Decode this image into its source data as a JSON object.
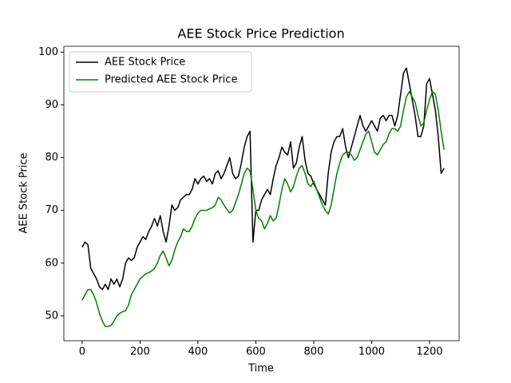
{
  "chart_data": {
    "type": "line",
    "title": "AEE Stock Price Prediction",
    "x_label": "Time",
    "y_label": "AEE Stock Price",
    "x": [
      0,
      10,
      20,
      30,
      40,
      50,
      60,
      70,
      80,
      90,
      100,
      110,
      120,
      130,
      140,
      150,
      160,
      170,
      180,
      190,
      200,
      210,
      220,
      230,
      240,
      250,
      260,
      270,
      280,
      290,
      300,
      310,
      320,
      330,
      340,
      350,
      360,
      370,
      380,
      390,
      400,
      410,
      420,
      430,
      440,
      450,
      460,
      470,
      480,
      490,
      500,
      510,
      520,
      530,
      540,
      550,
      560,
      570,
      580,
      590,
      600,
      610,
      620,
      630,
      640,
      650,
      660,
      670,
      680,
      690,
      700,
      710,
      720,
      730,
      740,
      750,
      760,
      770,
      780,
      790,
      800,
      810,
      820,
      830,
      840,
      850,
      860,
      870,
      880,
      890,
      900,
      910,
      920,
      930,
      940,
      950,
      960,
      970,
      980,
      990,
      1000,
      1010,
      1020,
      1030,
      1040,
      1050,
      1060,
      1070,
      1080,
      1090,
      1100,
      1110,
      1120,
      1130,
      1140,
      1150,
      1160,
      1170,
      1180,
      1190,
      1200,
      1210,
      1220,
      1230,
      1240,
      1250
    ],
    "series": [
      {
        "name": "AEE Stock Price",
        "color": "#000000",
        "values": [
          63,
          64,
          63.5,
          59,
          58,
          57,
          55.5,
          55,
          56,
          55,
          57,
          56,
          57,
          55.5,
          57,
          60,
          61,
          60.5,
          61,
          63,
          64,
          65,
          64.5,
          66,
          67,
          68.5,
          67,
          69,
          66,
          64,
          67,
          71,
          70,
          70.5,
          72,
          72.5,
          73,
          73,
          74,
          76,
          75,
          76,
          76.5,
          75.5,
          76,
          75,
          77,
          77.5,
          76,
          77,
          78.5,
          80,
          77,
          76,
          76.5,
          79,
          82,
          84,
          85,
          64,
          70,
          70,
          72,
          73,
          74,
          73,
          76,
          78.5,
          80,
          82,
          81,
          80.5,
          83,
          78,
          79,
          82,
          84,
          79.5,
          77,
          76.5,
          75,
          74,
          73,
          72,
          71,
          77,
          81,
          83,
          84,
          84,
          85.5,
          82,
          80,
          82,
          84,
          86,
          88,
          86,
          85,
          86,
          87,
          86,
          85,
          87.5,
          88,
          87,
          88,
          88,
          86,
          88,
          92,
          96,
          97,
          94,
          91,
          88,
          84,
          84,
          86,
          94,
          95,
          92,
          89,
          84,
          77,
          78
        ]
      },
      {
        "name": "Predicted AEE Stock Price",
        "color": "#008000",
        "values": [
          53,
          54,
          55,
          55,
          54,
          52.5,
          50.5,
          49,
          48,
          48,
          48.2,
          49,
          50,
          50.5,
          50.8,
          51,
          52,
          54,
          55,
          56,
          57,
          57.5,
          58,
          58.2,
          58.5,
          59,
          60,
          61.5,
          62.3,
          61,
          59.5,
          60.5,
          62.5,
          64,
          65,
          66.5,
          66,
          66,
          67,
          68.5,
          69.5,
          70,
          70,
          70,
          70.3,
          70.5,
          71,
          72.5,
          72,
          71,
          70.2,
          69.5,
          70,
          71.5,
          73,
          75,
          77,
          78,
          77.5,
          74,
          70,
          68.5,
          68,
          66.5,
          67.5,
          69,
          68,
          68.5,
          71,
          74,
          76,
          75,
          73.5,
          74.5,
          76.5,
          78,
          78.5,
          77,
          75,
          74.5,
          75.5,
          74,
          72.5,
          71,
          70,
          69.3,
          71,
          74,
          77,
          79,
          80.5,
          81,
          81,
          80.5,
          79.5,
          80,
          81.5,
          83,
          84.5,
          85,
          83,
          81,
          80.5,
          81.5,
          82.5,
          83,
          84.5,
          85.5,
          85.5,
          85,
          86,
          89,
          91.5,
          92.5,
          91.5,
          90.5,
          88,
          86,
          86.5,
          89,
          91,
          92.5,
          92,
          89,
          85,
          81.5
        ]
      }
    ],
    "xlim": [
      -63,
      1302
    ],
    "ylim": [
      45.3,
      101.1
    ],
    "xticks": [
      0,
      200,
      400,
      600,
      800,
      1000,
      1200
    ],
    "yticks": [
      50,
      60,
      70,
      80,
      90,
      100
    ],
    "legend": "upper left"
  }
}
